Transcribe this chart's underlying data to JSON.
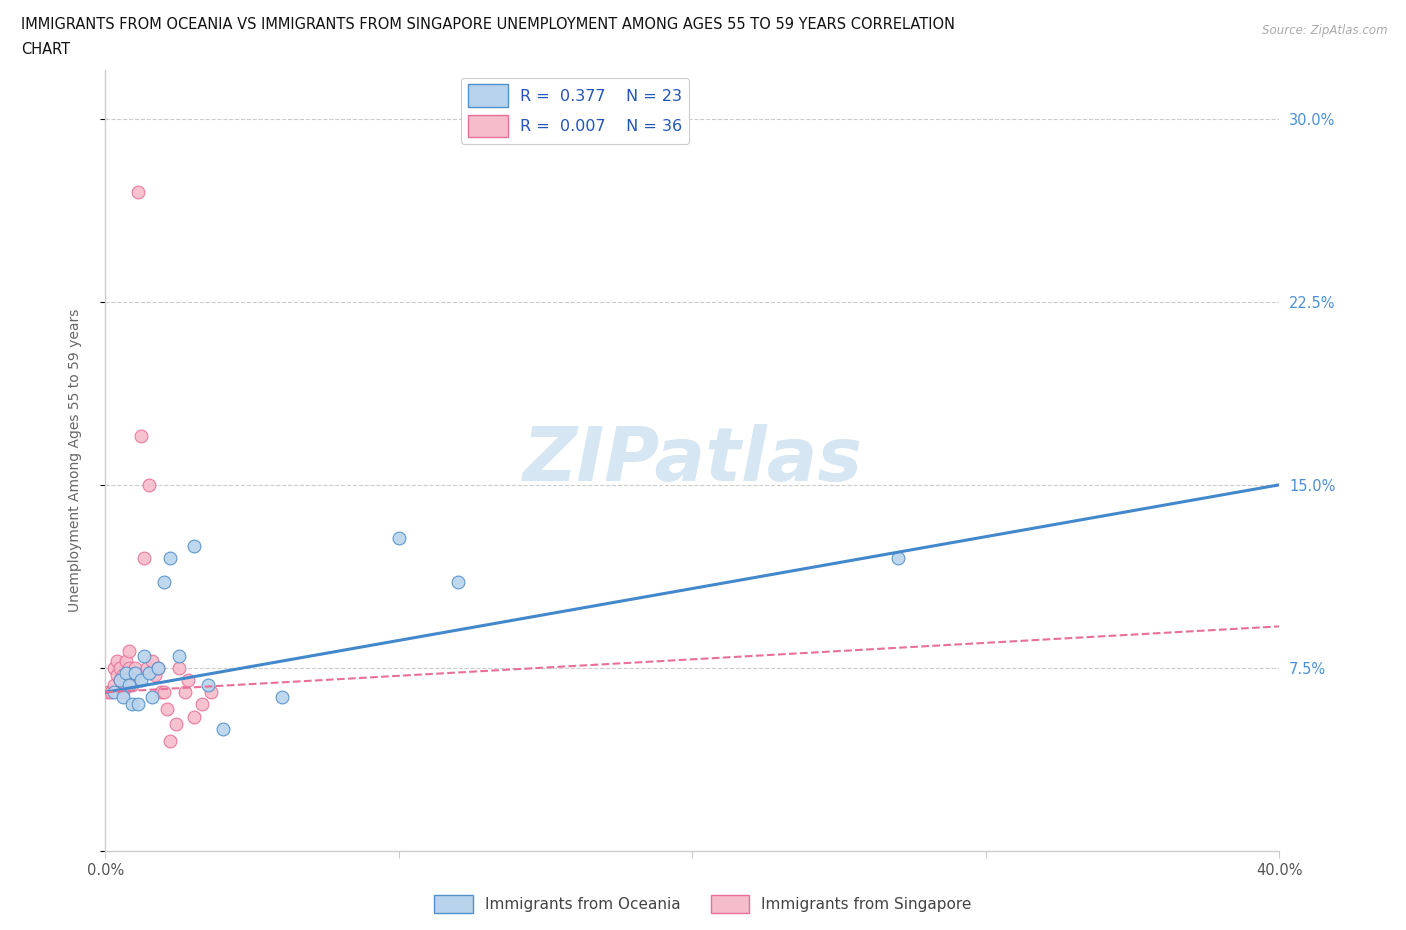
{
  "title_line1": "IMMIGRANTS FROM OCEANIA VS IMMIGRANTS FROM SINGAPORE UNEMPLOYMENT AMONG AGES 55 TO 59 YEARS CORRELATION",
  "title_line2": "CHART",
  "source": "Source: ZipAtlas.com",
  "ylabel": "Unemployment Among Ages 55 to 59 years",
  "xlim": [
    0.0,
    0.4
  ],
  "ylim": [
    0.0,
    0.32
  ],
  "ytick_positions": [
    0.0,
    0.075,
    0.15,
    0.225,
    0.3
  ],
  "background_color": "#ffffff",
  "watermark": "ZIPatlas",
  "oceania_R": 0.377,
  "oceania_N": 23,
  "singapore_R": 0.007,
  "singapore_N": 36,
  "oceania_color": "#b8d4ec",
  "singapore_color": "#f5bccb",
  "oceania_edge_color": "#5090cc",
  "singapore_edge_color": "#e87098",
  "oceania_line_color": "#4488cc",
  "singapore_line_color": "#e87098",
  "oceania_scatter_x": [
    0.003,
    0.005,
    0.006,
    0.007,
    0.008,
    0.009,
    0.01,
    0.011,
    0.012,
    0.013,
    0.015,
    0.016,
    0.018,
    0.02,
    0.022,
    0.025,
    0.03,
    0.035,
    0.04,
    0.06,
    0.1,
    0.12,
    0.27
  ],
  "oceania_scatter_y": [
    0.065,
    0.07,
    0.063,
    0.073,
    0.068,
    0.06,
    0.073,
    0.06,
    0.07,
    0.08,
    0.073,
    0.063,
    0.075,
    0.11,
    0.12,
    0.08,
    0.125,
    0.068,
    0.05,
    0.063,
    0.128,
    0.11,
    0.12
  ],
  "singapore_scatter_x": [
    0.001,
    0.002,
    0.003,
    0.003,
    0.004,
    0.004,
    0.005,
    0.005,
    0.006,
    0.006,
    0.007,
    0.007,
    0.008,
    0.008,
    0.009,
    0.01,
    0.01,
    0.011,
    0.012,
    0.013,
    0.014,
    0.015,
    0.016,
    0.017,
    0.018,
    0.019,
    0.02,
    0.021,
    0.022,
    0.024,
    0.025,
    0.027,
    0.028,
    0.03,
    0.033,
    0.036
  ],
  "singapore_scatter_y": [
    0.065,
    0.065,
    0.068,
    0.075,
    0.072,
    0.078,
    0.07,
    0.075,
    0.065,
    0.072,
    0.07,
    0.078,
    0.075,
    0.082,
    0.068,
    0.072,
    0.075,
    0.27,
    0.17,
    0.12,
    0.075,
    0.15,
    0.078,
    0.072,
    0.075,
    0.065,
    0.065,
    0.058,
    0.045,
    0.052,
    0.075,
    0.065,
    0.07,
    0.055,
    0.06,
    0.065
  ]
}
